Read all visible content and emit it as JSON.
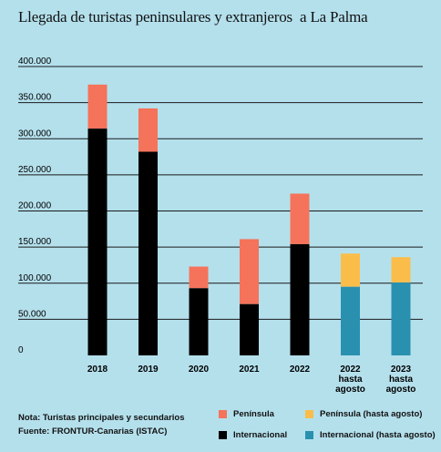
{
  "chart_data": {
    "type": "bar",
    "stacked": true,
    "title": "Llegada de turistas peninsulares y extranjeros  a La Palma",
    "xlabel": "",
    "ylabel": "",
    "ylim": [
      0,
      400000
    ],
    "yticks": [
      0,
      50000,
      100000,
      150000,
      200000,
      250000,
      300000,
      350000,
      400000
    ],
    "ytick_labels": [
      "0",
      "50.000",
      "100.000",
      "150.000",
      "200.000",
      "250.000",
      "300.000",
      "350.000",
      "400.000"
    ],
    "grid": true,
    "categories": [
      [
        "2018"
      ],
      [
        "2019"
      ],
      [
        "2020"
      ],
      [
        "2021"
      ],
      [
        "2022"
      ],
      [
        "2022",
        "hasta",
        "agosto"
      ],
      [
        "2023",
        "hasta",
        "agosto"
      ]
    ],
    "bars": [
      {
        "internacional": 314000,
        "peninsula": 61000,
        "partial": false
      },
      {
        "internacional": 282000,
        "peninsula": 60000,
        "partial": false
      },
      {
        "internacional": 93000,
        "peninsula": 30000,
        "partial": false
      },
      {
        "internacional": 71000,
        "peninsula": 90000,
        "partial": false
      },
      {
        "internacional": 154000,
        "peninsula": 70000,
        "partial": false
      },
      {
        "internacional": 95000,
        "peninsula": 46000,
        "partial": true
      },
      {
        "internacional": 101000,
        "peninsula": 35000,
        "partial": true
      }
    ],
    "series": [
      {
        "name": "Península",
        "color": "#f5735a"
      },
      {
        "name": "Internacional",
        "color": "#000000"
      },
      {
        "name": "Península (hasta agosto)",
        "color": "#fbbd4a"
      },
      {
        "name": "Internacional (hasta agosto)",
        "color": "#2a90b0"
      }
    ]
  },
  "note": {
    "line1": "Nota: Turistas principales y secundarios",
    "line2": "Fuente: FRONTUR-Canarias (ISTAC)"
  },
  "legend": {
    "peninsula": "Península",
    "peninsula_partial": "Península (hasta agosto)",
    "internacional": "Internacional",
    "internacional_partial": "Internacional (hasta agosto)"
  }
}
